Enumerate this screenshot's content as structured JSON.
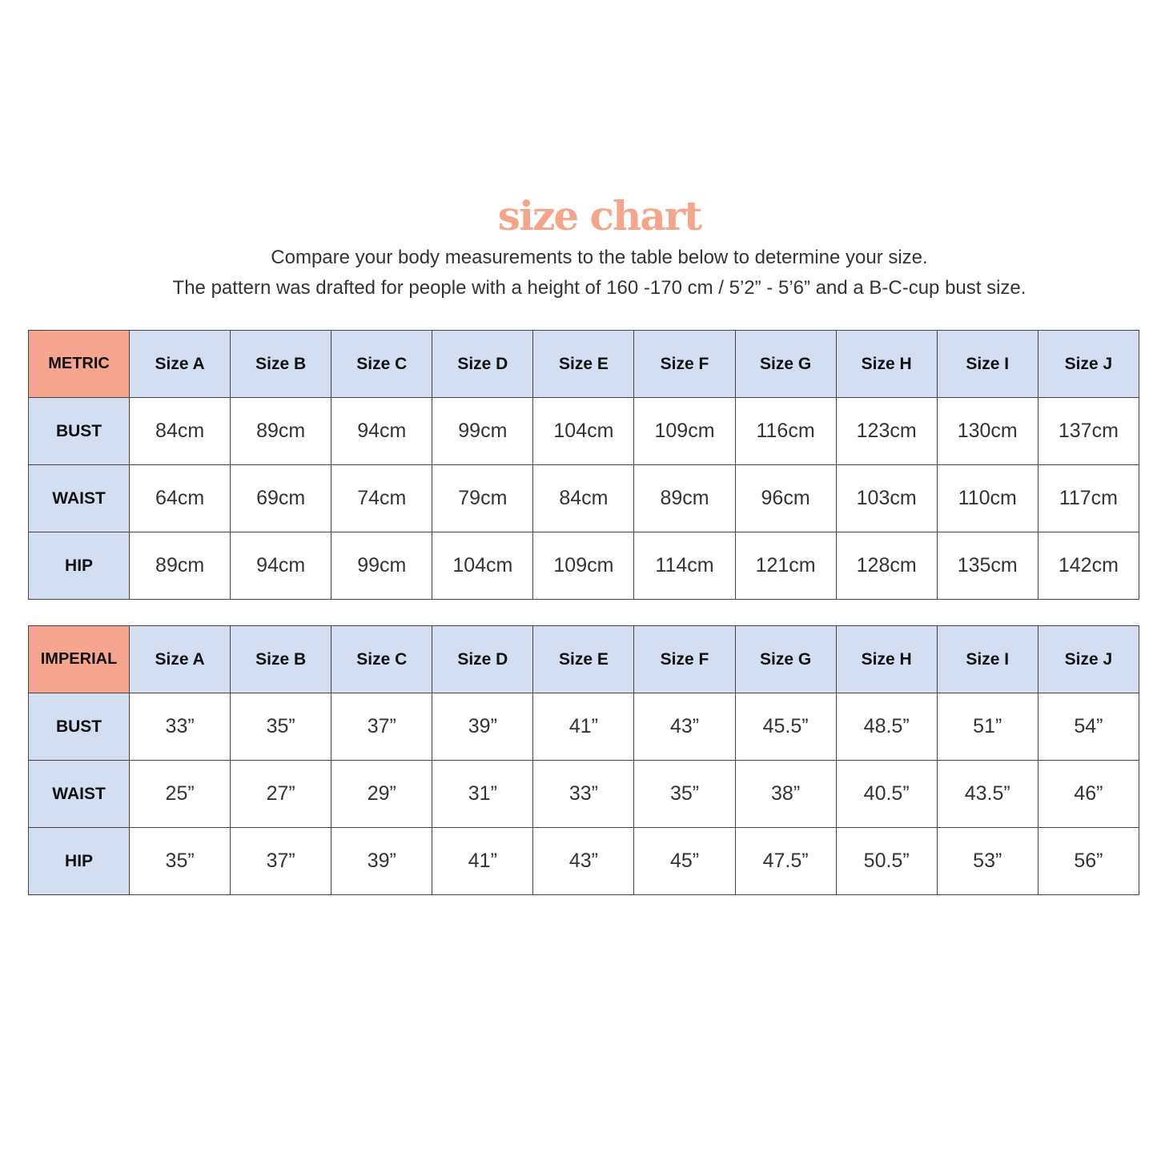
{
  "title": "size chart",
  "subtitle_lines": [
    "Compare your body measurements to the table below to determine your size.",
    "The pattern was drafted for people with a height of 160 -170 cm / 5’2” - 5’6” and a B-C-cup bust size."
  ],
  "colors": {
    "title": "#F4A58A",
    "corner": "#F6A58E",
    "header": "#D3DFF1"
  },
  "sizes": [
    "Size A",
    "Size B",
    "Size C",
    "Size D",
    "Size E",
    "Size F",
    "Size G",
    "Size H",
    "Size I",
    "Size J"
  ],
  "tables": [
    {
      "label": "METRIC",
      "rows": [
        {
          "label": "BUST",
          "values": [
            "84cm",
            "89cm",
            "94cm",
            "99cm",
            "104cm",
            "109cm",
            "116cm",
            "123cm",
            "130cm",
            "137cm"
          ]
        },
        {
          "label": "WAIST",
          "values": [
            "64cm",
            "69cm",
            "74cm",
            "79cm",
            "84cm",
            "89cm",
            "96cm",
            "103cm",
            "110cm",
            "117cm"
          ]
        },
        {
          "label": "HIP",
          "values": [
            "89cm",
            "94cm",
            "99cm",
            "104cm",
            "109cm",
            "114cm",
            "121cm",
            "128cm",
            "135cm",
            "142cm"
          ]
        }
      ]
    },
    {
      "label": "IMPERIAL",
      "rows": [
        {
          "label": "BUST",
          "values": [
            "33”",
            "35”",
            "37”",
            "39”",
            "41”",
            "43”",
            "45.5”",
            "48.5”",
            "51”",
            "54”"
          ]
        },
        {
          "label": "WAIST",
          "values": [
            "25”",
            "27”",
            "29”",
            "31”",
            "33”",
            "35”",
            "38”",
            "40.5”",
            "43.5”",
            "46”"
          ]
        },
        {
          "label": "HIP",
          "values": [
            "35”",
            "37”",
            "39”",
            "41”",
            "43”",
            "45”",
            "47.5”",
            "50.5”",
            "53”",
            "56”"
          ]
        }
      ]
    }
  ]
}
